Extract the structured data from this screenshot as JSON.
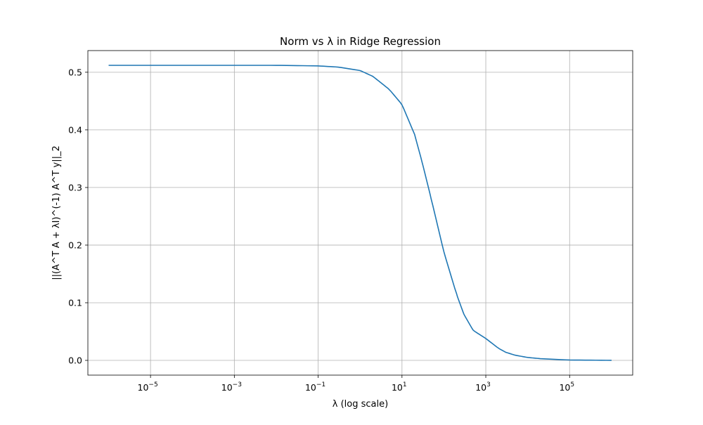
{
  "chart_data": {
    "type": "line",
    "title": "Norm vs λ in Ridge Regression",
    "xlabel": "λ (log scale)",
    "ylabel": "||(A^T A + λI)^(-1) A^T y||_2",
    "xscale": "log",
    "xlim": [
      3.2e-07,
      3200000.0
    ],
    "ylim": [
      -0.0256,
      0.5376
    ],
    "grid": true,
    "x_ticks": [
      {
        "base": "10",
        "exp": "−5",
        "value": 1e-05
      },
      {
        "base": "10",
        "exp": "−3",
        "value": 0.001
      },
      {
        "base": "10",
        "exp": "−1",
        "value": 0.1
      },
      {
        "base": "10",
        "exp": "1",
        "value": 10
      },
      {
        "base": "10",
        "exp": "3",
        "value": 1000
      },
      {
        "base": "10",
        "exp": "5",
        "value": 100000
      }
    ],
    "y_ticks": [
      {
        "label": "0.0",
        "value": 0.0
      },
      {
        "label": "0.1",
        "value": 0.1
      },
      {
        "label": "0.2",
        "value": 0.2
      },
      {
        "label": "0.3",
        "value": 0.3
      },
      {
        "label": "0.4",
        "value": 0.4
      },
      {
        "label": "0.5",
        "value": 0.5
      }
    ],
    "series": [
      {
        "color": "#1f77b4",
        "x": [
          1e-06,
          1e-05,
          0.0001,
          0.001,
          0.01,
          0.1,
          0.3,
          1,
          2,
          3,
          5,
          10,
          20,
          30,
          50,
          100,
          200,
          300,
          500,
          1000,
          2000,
          3000,
          5000,
          10000,
          20000,
          100000,
          1000000
        ],
        "y": [
          0.512,
          0.512,
          0.512,
          0.512,
          0.512,
          0.511,
          0.509,
          0.503,
          0.493,
          0.483,
          0.47,
          0.444,
          0.392,
          0.345,
          0.28,
          0.188,
          0.115,
          0.08,
          0.052,
          0.038,
          0.021,
          0.014,
          0.009,
          0.005,
          0.003,
          0.0006,
          0.0001
        ]
      }
    ]
  }
}
